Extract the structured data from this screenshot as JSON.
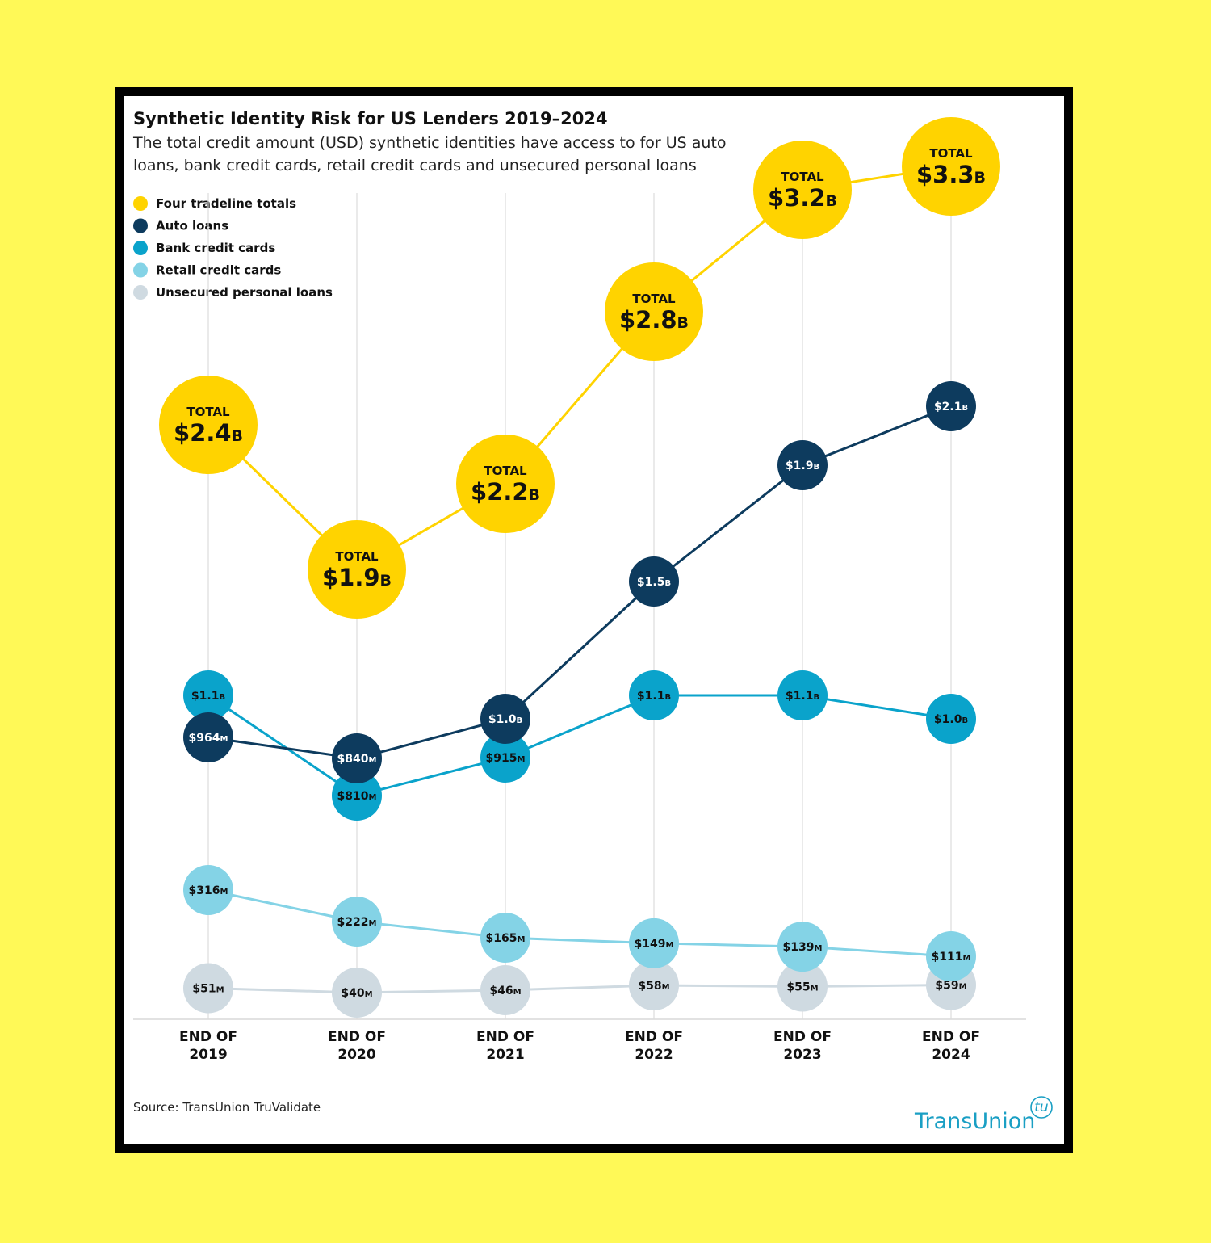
{
  "chart_data": {
    "type": "line",
    "title": "Synthetic Identity Risk for US Lenders 2019–2024",
    "subtitle": "The total credit amount (USD) synthetic identities have access to for US auto loans, bank credit cards, retail credit cards and unsecured personal loans",
    "categories": [
      "END OF 2019",
      "END OF 2020",
      "END OF 2021",
      "END OF 2022",
      "END OF 2023",
      "END OF 2024"
    ],
    "category_lines": [
      [
        "END OF",
        "2019"
      ],
      [
        "END OF",
        "2020"
      ],
      [
        "END OF",
        "2021"
      ],
      [
        "END OF",
        "2022"
      ],
      [
        "END OF",
        "2023"
      ],
      [
        "END OF",
        "2024"
      ]
    ],
    "unit": "USD (millions)",
    "total_label": "TOTAL",
    "series": [
      {
        "name": "Four tradeline totals",
        "key": "total",
        "color": "#ffd300",
        "text_color": "#111111",
        "values": [
          2400,
          1900,
          2200,
          2800,
          3200,
          3300
        ],
        "labels": [
          "$2.4B",
          "$1.9B",
          "$2.2B",
          "$2.8B",
          "$3.2B",
          "$3.3B"
        ]
      },
      {
        "name": "Auto loans",
        "key": "auto",
        "color": "#0d3b5e",
        "text_color": "#ffffff",
        "values": [
          964,
          840,
          1000,
          1500,
          1900,
          2100
        ],
        "labels": [
          "$964M",
          "$840M",
          "$1.0B",
          "$1.5B",
          "$1.9B",
          "$2.1B"
        ]
      },
      {
        "name": "Bank credit cards",
        "key": "bank",
        "color": "#0aa3cb",
        "text_color": "#111111",
        "values": [
          1100,
          810,
          915,
          1100,
          1100,
          1000
        ],
        "labels": [
          "$1.1B",
          "$810M",
          "$915M",
          "$1.1B",
          "$1.1B",
          "$1.0B"
        ]
      },
      {
        "name": "Retail credit cards",
        "key": "retail",
        "color": "#84d3e6",
        "text_color": "#111111",
        "values": [
          316,
          222,
          165,
          149,
          139,
          111
        ],
        "labels": [
          "$316M",
          "$222M",
          "$165M",
          "$149M",
          "$139M",
          "$111M"
        ]
      },
      {
        "name": "Unsecured personal loans",
        "key": "unsecured",
        "color": "#cfdae1",
        "text_color": "#111111",
        "values": [
          51,
          40,
          46,
          58,
          55,
          59
        ],
        "labels": [
          "$51M",
          "$40M",
          "$46M",
          "$58M",
          "$55M",
          "$59M"
        ]
      }
    ],
    "legend": "top-left",
    "grid": "vertical",
    "source": "Source: TransUnion TruValidate"
  },
  "brand": {
    "name": "TransUnion",
    "mark": "tu",
    "color": "#1a9fc4"
  }
}
